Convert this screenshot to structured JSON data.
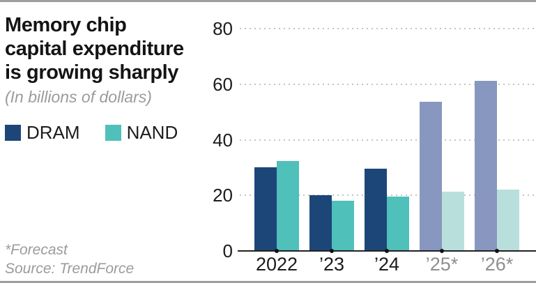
{
  "header": {
    "title_lines": [
      "Memory chip",
      "capital expenditure",
      "is growing sharply"
    ],
    "subtitle": "(In billions of dollars)"
  },
  "footnote": {
    "forecast_note": "*Forecast",
    "source": "Source: TrendForce"
  },
  "chart_data": {
    "type": "bar",
    "title": "Memory chip capital expenditure is growing sharply",
    "subtitle": "(In billions of dollars)",
    "unit": "billions of dollars",
    "categories": [
      "2022",
      "’23",
      "’24",
      "’25*",
      "’26*"
    ],
    "forecast_categories": [
      "’25*",
      "’26*"
    ],
    "series": [
      {
        "name": "DRAM",
        "values": [
          30,
          20,
          29.7,
          53.6,
          61.3
        ],
        "color": "#1d4678",
        "forecast_color": "#8897bf"
      },
      {
        "name": "NAND",
        "values": [
          32.3,
          18,
          19.5,
          21.2,
          22.1
        ],
        "color": "#4fc0ba",
        "forecast_color": "#b9dfdc"
      }
    ],
    "ylim": [
      0,
      80
    ],
    "yticks": [
      0,
      20,
      40,
      60,
      80
    ],
    "grid": "horizontal-dotted",
    "gridline_color": "#c3c3c3",
    "axis_color": "#222222",
    "forecast_tick_label_color": "#8f8f8f",
    "legend_position": "top-left",
    "footnotes": [
      "*Forecast",
      "Source: TrendForce"
    ]
  }
}
